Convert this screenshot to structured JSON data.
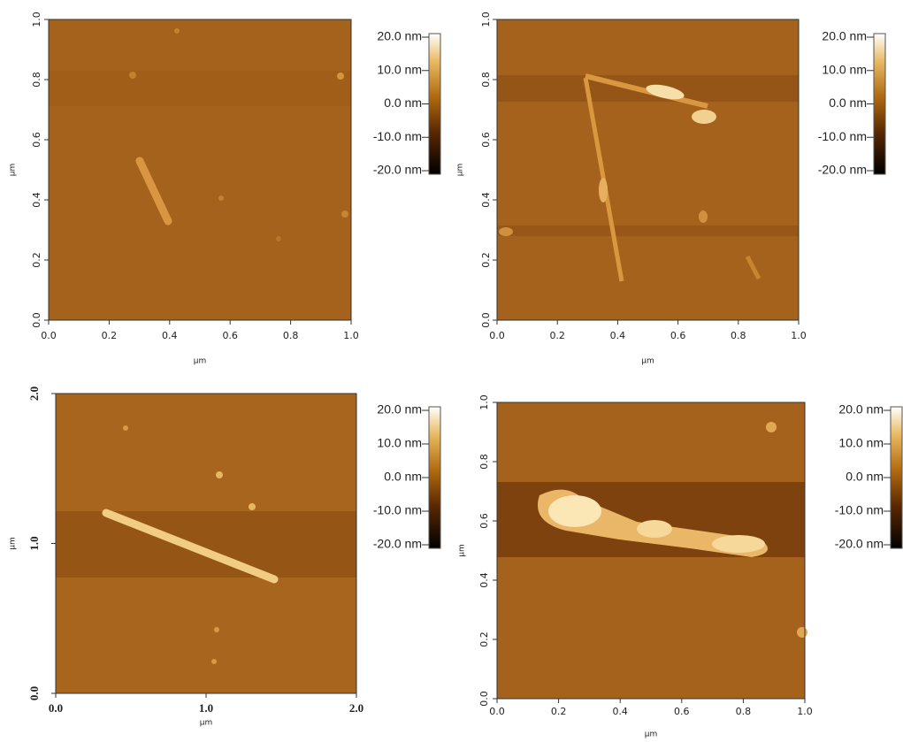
{
  "panels": [
    {
      "x_ticks": [
        "0.0",
        "0.2",
        "0.4",
        "0.6",
        "0.8",
        "1.0"
      ],
      "y_ticks": [
        "0.0",
        "0.2",
        "0.4",
        "0.6",
        "0.8",
        "1.0"
      ],
      "x_label": "µm",
      "y_label": "µm",
      "colorbar": [
        "20.0 nm",
        "10.0 nm",
        "0.0 nm",
        "-10.0 nm",
        "-20.0 nm"
      ]
    },
    {
      "x_ticks": [
        "0.0",
        "0.2",
        "0.4",
        "0.6",
        "0.8",
        "1.0"
      ],
      "y_ticks": [
        "0.0",
        "0.2",
        "0.4",
        "0.6",
        "0.8",
        "1.0"
      ],
      "x_label": "µm",
      "y_label": "µm",
      "colorbar": [
        "20.0 nm",
        "10.0 nm",
        "0.0 nm",
        "-10.0 nm",
        "-20.0 nm"
      ]
    },
    {
      "x_ticks": [
        "0.0",
        "1.0",
        "2.0"
      ],
      "y_ticks": [
        "0.0",
        "1.0",
        "2.0"
      ],
      "x_label": "µm",
      "y_label": "µm",
      "colorbar": [
        "20.0 nm",
        "10.0 nm",
        "0.0 nm",
        "-10.0 nm",
        "-20.0 nm"
      ]
    },
    {
      "x_ticks": [
        "0.0",
        "0.2",
        "0.4",
        "0.6",
        "0.8",
        "1.0"
      ],
      "y_ticks": [
        "0.0",
        "0.2",
        "0.4",
        "0.6",
        "0.8",
        "1.0"
      ],
      "x_label": "µm",
      "y_label": "µm",
      "colorbar": [
        "20.0 nm",
        "10.0 nm",
        "0.0 nm",
        "-10.0 nm",
        "-20.0 nm"
      ]
    }
  ]
}
